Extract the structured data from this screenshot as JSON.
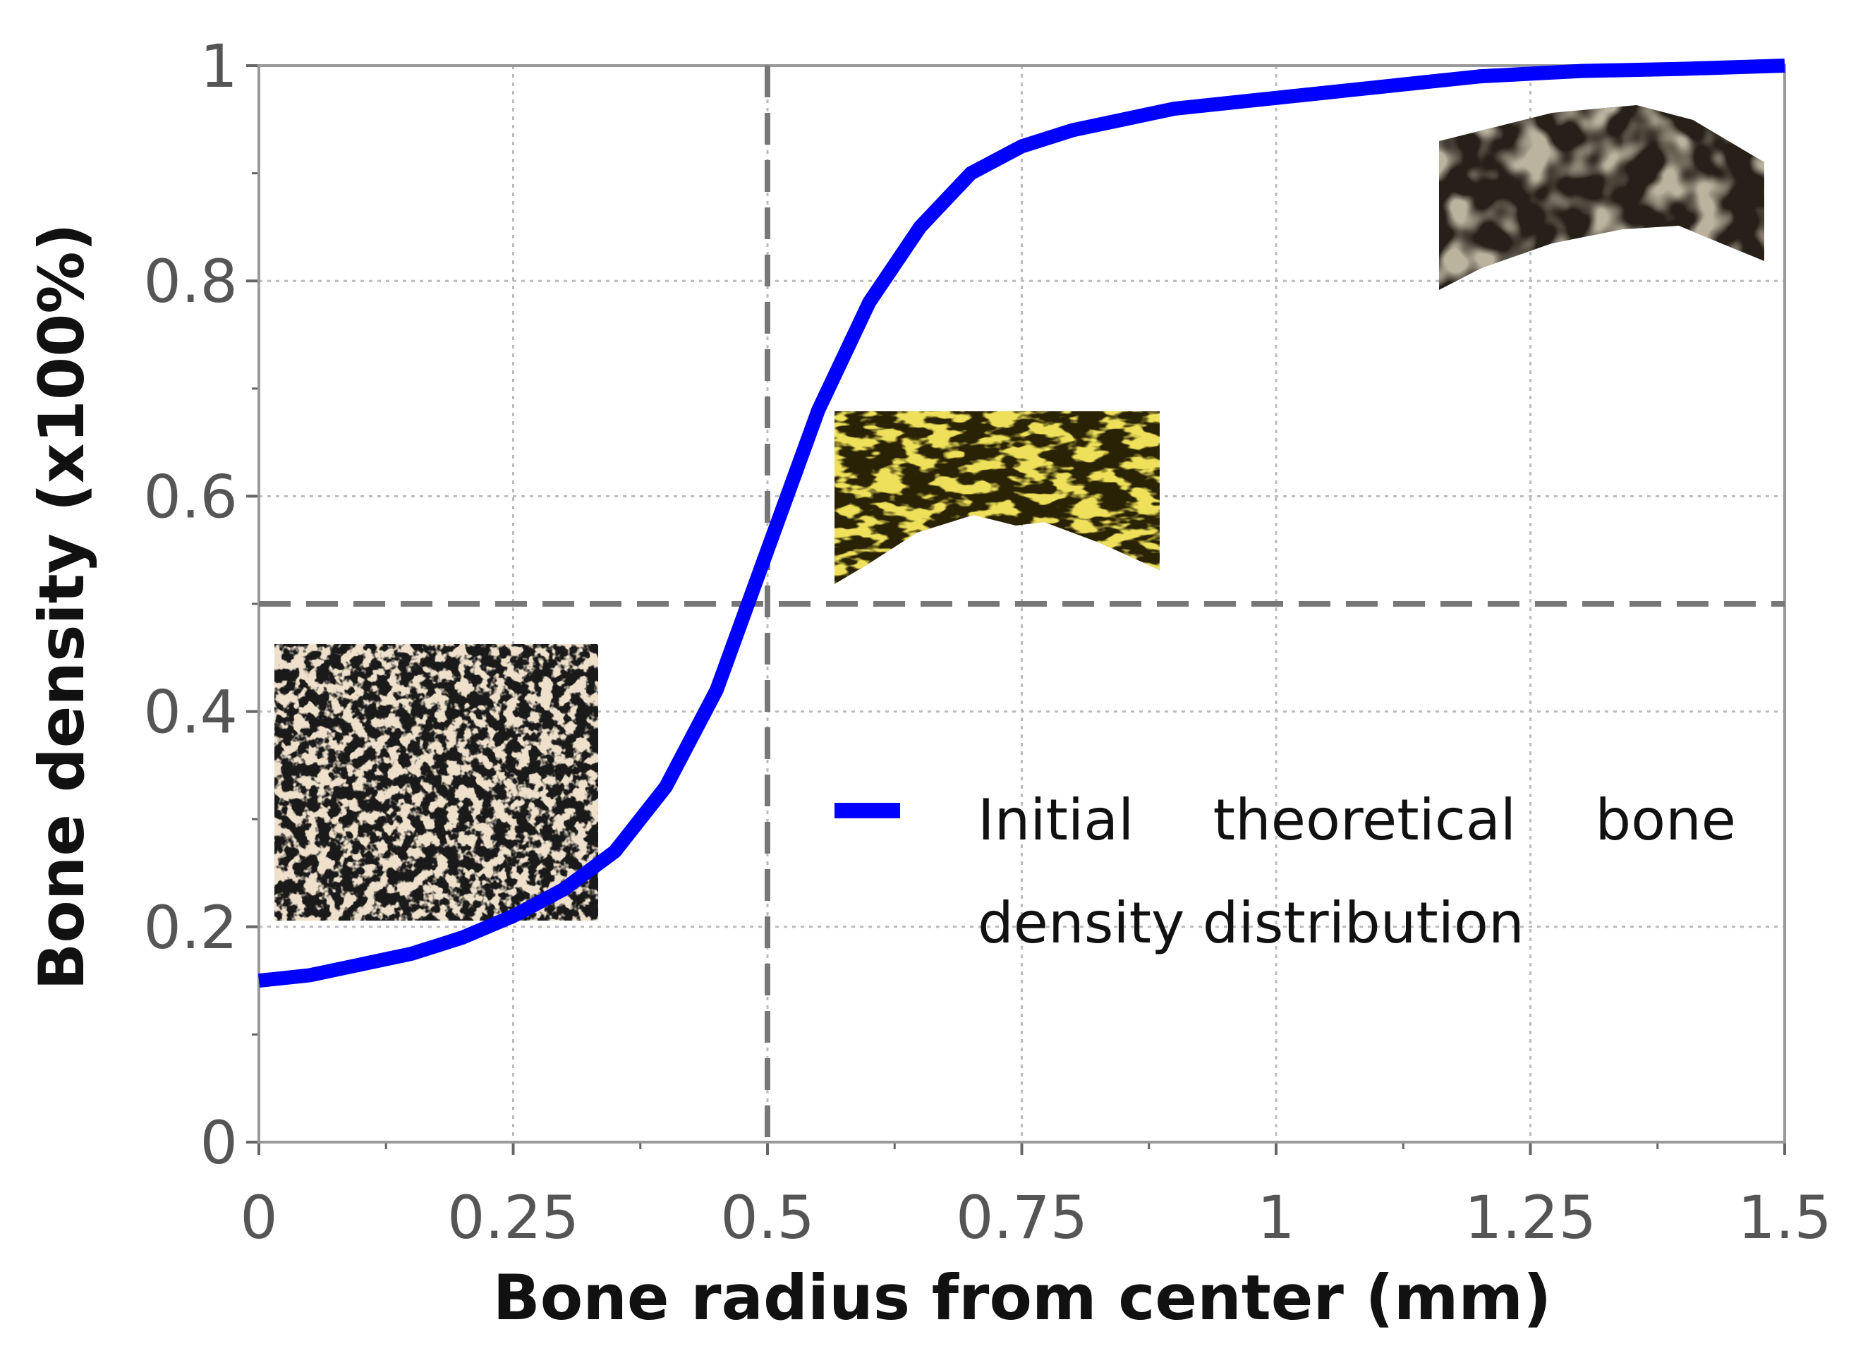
{
  "chart_data": {
    "type": "line",
    "xlabel": "Bone radius from center (mm)",
    "ylabel": "Bone density (x100%)",
    "x": [
      0,
      0.05,
      0.1,
      0.15,
      0.2,
      0.25,
      0.3,
      0.35,
      0.4,
      0.45,
      0.5,
      0.55,
      0.6,
      0.65,
      0.7,
      0.75,
      0.8,
      0.85,
      0.9,
      1.0,
      1.1,
      1.2,
      1.3,
      1.4,
      1.5
    ],
    "series": [
      {
        "name": "Initial theoretical bone density distribution",
        "color": "#0000ff",
        "values": [
          0.15,
          0.155,
          0.165,
          0.175,
          0.19,
          0.21,
          0.235,
          0.27,
          0.33,
          0.42,
          0.55,
          0.68,
          0.78,
          0.85,
          0.9,
          0.925,
          0.94,
          0.95,
          0.96,
          0.97,
          0.98,
          0.99,
          0.995,
          0.997,
          1.0
        ]
      }
    ],
    "xlim": [
      0,
      1.5
    ],
    "ylim": [
      0,
      1
    ],
    "xticks": [
      0,
      0.25,
      0.5,
      0.75,
      1,
      1.25,
      1.5
    ],
    "yticks": [
      0,
      0.2,
      0.4,
      0.6,
      0.8,
      1
    ],
    "xminorticks": [
      0.125,
      0.375,
      0.625,
      0.875,
      1.125,
      1.375
    ],
    "yminorticks": [
      0.1,
      0.3,
      0.5,
      0.7,
      0.9
    ],
    "vlines": [
      0.5
    ],
    "hlines": [
      0.5
    ],
    "grid": true
  }
}
